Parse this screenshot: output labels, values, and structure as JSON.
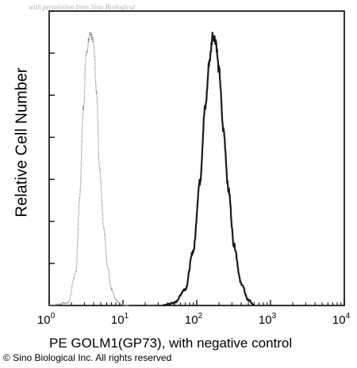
{
  "watermark": "with permission from Sino Biological",
  "copyright": "© Sino Biological Inc. All rights reserved",
  "chart_data": {
    "type": "line",
    "title": "",
    "xlabel": "PE GOLM1(GP73), with negative control",
    "ylabel": "Relative Cell Number",
    "x_scale": "log",
    "xlim": [
      1,
      10000
    ],
    "ylim": [
      0,
      1
    ],
    "x_ticks": [
      {
        "value": 1,
        "base": "10",
        "exp": "0"
      },
      {
        "value": 10,
        "base": "10",
        "exp": "1"
      },
      {
        "value": 100,
        "base": "10",
        "exp": "2"
      },
      {
        "value": 1000,
        "base": "10",
        "exp": "3"
      },
      {
        "value": 10000,
        "base": "10",
        "exp": "4"
      }
    ],
    "grid": false,
    "legend": "none",
    "series": [
      {
        "role": "negative control",
        "style": "dotted",
        "color": "#8c8c8c",
        "x": [
          1.0,
          1.8,
          2.3,
          2.6,
          2.9,
          3.2,
          3.6,
          4.0,
          4.4,
          4.8,
          5.5,
          6.2,
          7.0,
          8.0,
          9.5,
          12.0
        ],
        "y": [
          0.0,
          0.01,
          0.12,
          0.4,
          0.72,
          0.93,
          1.0,
          0.96,
          0.78,
          0.5,
          0.28,
          0.14,
          0.06,
          0.02,
          0.005,
          0.0
        ]
      },
      {
        "role": "PE GOLM1(GP73)",
        "style": "solid",
        "color": "#1a1a1a",
        "x": [
          35,
          50,
          70,
          90,
          110,
          130,
          150,
          165,
          180,
          200,
          230,
          270,
          320,
          400,
          500,
          600
        ],
        "y": [
          0.0,
          0.01,
          0.06,
          0.2,
          0.45,
          0.72,
          0.9,
          0.99,
          0.97,
          0.86,
          0.64,
          0.42,
          0.22,
          0.08,
          0.02,
          0.0
        ]
      }
    ]
  }
}
